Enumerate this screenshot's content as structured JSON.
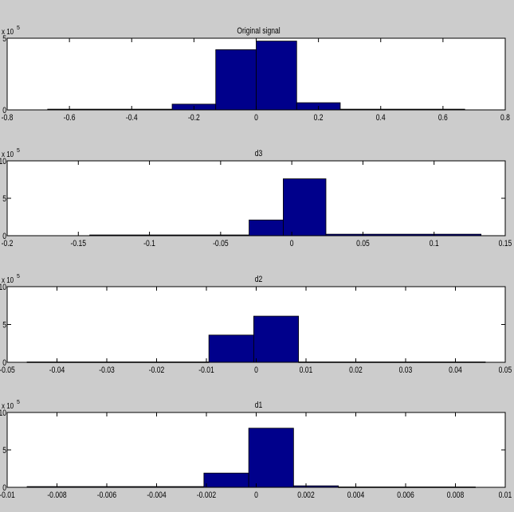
{
  "figure": {
    "background": "#cccccc",
    "axes_background": "#ffffff",
    "bar_color": "#00008b",
    "bar_edge": "#000000"
  },
  "chart_data": [
    {
      "type": "bar",
      "title": "Original signal",
      "exponent_label": "x 10",
      "exponent": "5",
      "xlim": [
        -0.8,
        0.8
      ],
      "ylim": [
        0,
        5
      ],
      "xticks": [
        "-0.8",
        "-0.6",
        "-0.4",
        "-0.2",
        "0",
        "0.2",
        "0.4",
        "0.6",
        "0.8"
      ],
      "xtick_values": [
        -0.8,
        -0.6,
        -0.4,
        -0.2,
        0,
        0.2,
        0.4,
        0.6,
        0.8
      ],
      "yticks": [
        "0",
        "5"
      ],
      "ytick_values": [
        0,
        5
      ],
      "bins": [
        {
          "x0": -0.67,
          "x1": -0.27,
          "value": 0.05
        },
        {
          "x0": -0.27,
          "x1": -0.13,
          "value": 0.4
        },
        {
          "x0": -0.13,
          "x1": 0.0,
          "value": 4.2
        },
        {
          "x0": 0.0,
          "x1": 0.13,
          "value": 4.8
        },
        {
          "x0": 0.13,
          "x1": 0.27,
          "value": 0.5
        },
        {
          "x0": 0.27,
          "x1": 0.67,
          "value": 0.05
        }
      ]
    },
    {
      "type": "bar",
      "title": "d3",
      "exponent_label": "x 10",
      "exponent": "5",
      "xlim": [
        -0.2,
        0.15
      ],
      "ylim": [
        0,
        10
      ],
      "xticks": [
        "-0.2",
        "-0.15",
        "-0.1",
        "-0.05",
        "0",
        "0.05",
        "0.1",
        "0.15"
      ],
      "xtick_values": [
        -0.2,
        -0.15,
        -0.1,
        -0.05,
        0,
        0.05,
        0.1,
        0.15
      ],
      "yticks": [
        "0",
        "5",
        "10"
      ],
      "ytick_values": [
        0,
        5,
        10
      ],
      "bins": [
        {
          "x0": -0.142,
          "x1": -0.03,
          "value": 0.1
        },
        {
          "x0": -0.03,
          "x1": -0.006,
          "value": 2.1
        },
        {
          "x0": -0.006,
          "x1": 0.024,
          "value": 7.6
        },
        {
          "x0": 0.024,
          "x1": 0.133,
          "value": 0.2
        }
      ]
    },
    {
      "type": "bar",
      "title": "d2",
      "exponent_label": "x 10",
      "exponent": "5",
      "xlim": [
        -0.05,
        0.05
      ],
      "ylim": [
        0,
        10
      ],
      "xticks": [
        "-0.05",
        "-0.04",
        "-0.03",
        "-0.02",
        "-0.01",
        "0",
        "0.01",
        "0.02",
        "0.03",
        "0.04",
        "0.05"
      ],
      "xtick_values": [
        -0.05,
        -0.04,
        -0.03,
        -0.02,
        -0.01,
        0,
        0.01,
        0.02,
        0.03,
        0.04,
        0.05
      ],
      "yticks": [
        "0",
        "5",
        "10"
      ],
      "ytick_values": [
        0,
        5,
        10
      ],
      "bins": [
        {
          "x0": -0.046,
          "x1": -0.0095,
          "value": 0.05
        },
        {
          "x0": -0.0095,
          "x1": -0.0005,
          "value": 3.6
        },
        {
          "x0": -0.0005,
          "x1": 0.0085,
          "value": 6.1
        },
        {
          "x0": 0.0085,
          "x1": 0.046,
          "value": 0.05
        }
      ]
    },
    {
      "type": "bar",
      "title": "d1",
      "exponent_label": "x 10",
      "exponent": "5",
      "xlim": [
        -0.01,
        0.01
      ],
      "ylim": [
        0,
        10
      ],
      "xticks": [
        "-0.01",
        "-0.008",
        "-0.006",
        "-0.004",
        "-0.002",
        "0",
        "0.002",
        "0.004",
        "0.006",
        "0.008",
        "0.01"
      ],
      "xtick_values": [
        -0.01,
        -0.008,
        -0.006,
        -0.004,
        -0.002,
        0,
        0.002,
        0.004,
        0.006,
        0.008,
        0.01
      ],
      "yticks": [
        "0",
        "5",
        "10"
      ],
      "ytick_values": [
        0,
        5,
        10
      ],
      "bins": [
        {
          "x0": -0.0092,
          "x1": -0.0021,
          "value": 0.1
        },
        {
          "x0": -0.0021,
          "x1": -0.0003,
          "value": 1.9
        },
        {
          "x0": -0.0003,
          "x1": 0.0015,
          "value": 7.9
        },
        {
          "x0": 0.0015,
          "x1": 0.0033,
          "value": 0.2
        },
        {
          "x0": 0.0033,
          "x1": 0.0088,
          "value": 0.05
        }
      ]
    }
  ]
}
